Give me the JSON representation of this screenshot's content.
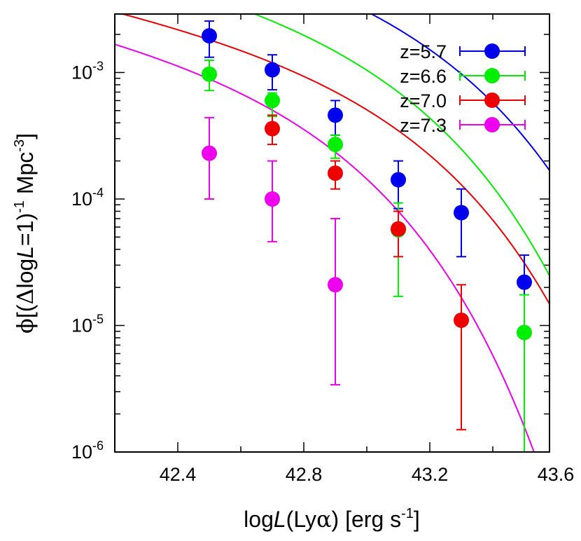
{
  "chart_data": {
    "type": "scatter",
    "xlabel_parts": {
      "pre": "log",
      "var": "L",
      "post": "(Ly",
      "greek": "α",
      "unit": ") [erg s",
      "exp": "-1",
      "close": "]"
    },
    "ylabel_parts": {
      "phi": "ϕ",
      "open": "[(",
      "delta": "Δ",
      "log": "log",
      "var": "L",
      "eq": "=1)",
      "exp1": "-1",
      "mpc": " Mpc",
      "exp2": "-3",
      "close": "]"
    },
    "xlim": [
      42.2,
      43.58
    ],
    "ylim": [
      1e-06,
      0.0029
    ],
    "yscale": "log",
    "xticks": [
      {
        "value": 42.4,
        "label": "42.4"
      },
      {
        "value": 42.8,
        "label": "42.8"
      },
      {
        "value": 43.2,
        "label": "43.2"
      },
      {
        "value": 43.6,
        "label": "43.6"
      }
    ],
    "yticks": [
      {
        "value": 1e-06,
        "base": "10",
        "exp": "-6"
      },
      {
        "value": 1e-05,
        "base": "10",
        "exp": "-5"
      },
      {
        "value": 0.0001,
        "base": "10",
        "exp": "-4"
      },
      {
        "value": 0.001,
        "base": "10",
        "exp": "-3"
      }
    ],
    "legend_position": "top-right",
    "series": [
      {
        "name": "z=5.7",
        "color": "#0000ee",
        "points": [
          {
            "x": 42.5,
            "y": 0.00195,
            "lo": 0.00132,
            "hi": 0.00255
          },
          {
            "x": 42.7,
            "y": 0.00105,
            "lo": 0.00073,
            "hi": 0.00138
          },
          {
            "x": 42.9,
            "y": 0.00046,
            "lo": 0.00032,
            "hi": 0.0006
          },
          {
            "x": 43.1,
            "y": 0.000142,
            "lo": 8.4e-05,
            "hi": 0.0002
          },
          {
            "x": 43.3,
            "y": 7.8e-05,
            "lo": 3.5e-05,
            "hi": 0.00012
          },
          {
            "x": 43.5,
            "y": 2.2e-05,
            "lo": 8.2e-06,
            "hi": 3.6e-05
          }
        ],
        "fit": {
          "phi_star": 0.0026,
          "log_lstar": 43.1,
          "alpha": -1.5
        }
      },
      {
        "name": "z=6.6",
        "color": "#00ee00",
        "points": [
          {
            "x": 42.5,
            "y": 0.00097,
            "lo": 0.00072,
            "hi": 0.00125
          },
          {
            "x": 42.7,
            "y": 0.0006,
            "lo": 0.00045,
            "hi": 0.00069
          },
          {
            "x": 42.9,
            "y": 0.00027,
            "lo": 0.00021,
            "hi": 0.00032
          },
          {
            "x": 43.1,
            "y": 5.7e-05,
            "lo": 1.7e-05,
            "hi": 9.3e-05
          },
          {
            "x": 43.5,
            "y": 8.8e-06,
            "lo": 6e-07,
            "hi": 1.75e-05
          }
        ],
        "fit": {
          "phi_star": 0.00142,
          "log_lstar": 42.96,
          "alpha": -1.5
        }
      },
      {
        "name": "z=7.0",
        "color": "#ee0000",
        "points": [
          {
            "x": 42.7,
            "y": 0.00036,
            "lo": 0.00027,
            "hi": 0.00046
          },
          {
            "x": 42.9,
            "y": 0.00016,
            "lo": 0.00012,
            "hi": 0.0002
          },
          {
            "x": 43.1,
            "y": 5.8e-05,
            "lo": 3.5e-05,
            "hi": 8e-05
          },
          {
            "x": 43.3,
            "y": 1.1e-05,
            "lo": 1.5e-06,
            "hi": 2.1e-05
          }
        ],
        "fit": {
          "phi_star": 0.00062,
          "log_lstar": 42.99,
          "alpha": -1.5
        }
      },
      {
        "name": "z=7.3",
        "color": "#ee00ee",
        "points": [
          {
            "x": 42.5,
            "y": 0.00023,
            "lo": 0.0001,
            "hi": 0.00044
          },
          {
            "x": 42.7,
            "y": 0.0001,
            "lo": 4.6e-05,
            "hi": 0.0002
          },
          {
            "x": 42.9,
            "y": 2.1e-05,
            "lo": 3.4e-06,
            "hi": 7e-05
          }
        ],
        "fit": {
          "phi_star": 0.00052,
          "log_lstar": 42.74,
          "alpha": -1.5
        }
      }
    ]
  }
}
